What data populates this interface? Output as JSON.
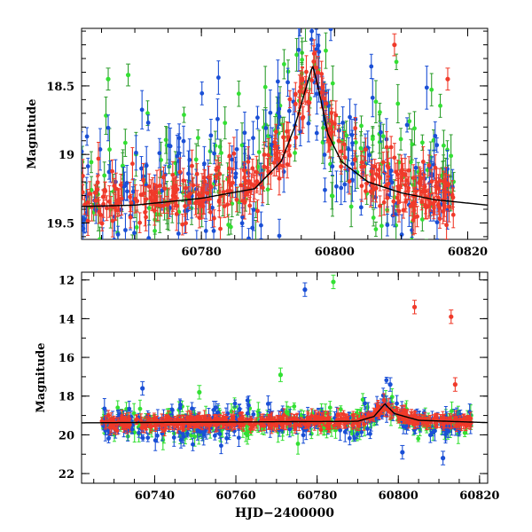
{
  "chart_data": [
    {
      "type": "scatter",
      "panel": "top",
      "title": "",
      "xlabel": "",
      "ylabel": "Magnitude",
      "xlim": [
        60762,
        60823
      ],
      "ylim": [
        19.62,
        18.08
      ],
      "y_inverted": true,
      "xticks": [
        60780,
        60800,
        60820
      ],
      "xtick_labels": [
        "60780",
        "60800",
        "60820"
      ],
      "yticks": [
        18.5,
        19,
        19.5
      ],
      "ytick_labels": [
        "18.5",
        "19",
        "19.5"
      ],
      "grid": false,
      "legend": "none",
      "series": [
        {
          "color": "#2e9e2e",
          "marker_color": "#33e033",
          "x_range": [
            60762,
            60818
          ],
          "base_mag": 19.25,
          "scatter": 0.35
        },
        {
          "color": "#1a4fd6",
          "x_range": [
            60762,
            60818
          ],
          "base_mag": 19.25,
          "scatter": 0.3
        },
        {
          "color": "#f03a2a",
          "x_range": [
            60762,
            60818
          ],
          "base_mag": 19.3,
          "scatter": 0.12
        }
      ],
      "model_curve": {
        "color": "#000000",
        "baseline": 19.38,
        "peak_x": 60796.7,
        "peak_mag": 18.35,
        "points": [
          [
            60762,
            19.38
          ],
          [
            60770,
            19.37
          ],
          [
            60780,
            19.32
          ],
          [
            60788,
            19.25
          ],
          [
            60792,
            19.05
          ],
          [
            60794,
            18.8
          ],
          [
            60795.5,
            18.55
          ],
          [
            60796.7,
            18.35
          ],
          [
            60797.5,
            18.5
          ],
          [
            60799,
            18.85
          ],
          [
            60801,
            19.05
          ],
          [
            60805,
            19.2
          ],
          [
            60810,
            19.28
          ],
          [
            60815,
            19.33
          ],
          [
            60823,
            19.37
          ]
        ]
      },
      "annotations": {
        "outliers": [
          {
            "series": 0,
            "x": 60766,
            "y": 18.45
          },
          {
            "series": 0,
            "x": 60769,
            "y": 18.42
          },
          {
            "series": 2,
            "x": 60817,
            "y": 18.45
          },
          {
            "series": 2,
            "x": 60809,
            "y": 18.2
          }
        ]
      }
    },
    {
      "type": "scatter",
      "panel": "bottom",
      "title": "",
      "xlabel": "HJD−2400000",
      "ylabel": "Magnitude",
      "xlim": [
        60722,
        60822
      ],
      "ylim": [
        22.5,
        11.6
      ],
      "y_inverted": true,
      "xticks": [
        60740,
        60760,
        60780,
        60800,
        60820
      ],
      "xtick_labels": [
        "60740",
        "60760",
        "60780",
        "60800",
        "60820"
      ],
      "yticks": [
        12,
        14,
        16,
        18,
        20,
        22
      ],
      "ytick_labels": [
        "12",
        "14",
        "16",
        "18",
        "20",
        "22"
      ],
      "grid": false,
      "legend": "none",
      "series": [
        {
          "color": "#33e033",
          "x_range": [
            60727,
            60818
          ],
          "base_mag": 19.4,
          "scatter": 0.45
        },
        {
          "color": "#1a4fd6",
          "x_range": [
            60727,
            60818
          ],
          "base_mag": 19.4,
          "scatter": 0.45
        },
        {
          "color": "#f03a2a",
          "x_range": [
            60727,
            60818
          ],
          "base_mag": 19.35,
          "scatter": 0.15
        }
      ],
      "model_curve": {
        "color": "#000000",
        "points": [
          [
            60722,
            19.38
          ],
          [
            60790,
            19.3
          ],
          [
            60794,
            19.05
          ],
          [
            60796.7,
            18.4
          ],
          [
            60799,
            18.9
          ],
          [
            60805,
            19.25
          ],
          [
            60822,
            19.37
          ]
        ]
      },
      "annotations": {
        "outliers": [
          {
            "series": 1,
            "x": 60777,
            "y": 12.5
          },
          {
            "series": 0,
            "x": 60784,
            "y": 12.1
          },
          {
            "series": 2,
            "x": 60804,
            "y": 13.4
          },
          {
            "series": 2,
            "x": 60813,
            "y": 13.9
          },
          {
            "series": 0,
            "x": 60771,
            "y": 16.9
          },
          {
            "series": 1,
            "x": 60798,
            "y": 17.4
          },
          {
            "series": 2,
            "x": 60814,
            "y": 17.4
          },
          {
            "series": 1,
            "x": 60737,
            "y": 17.6
          },
          {
            "series": 0,
            "x": 60751,
            "y": 17.8
          },
          {
            "series": 1,
            "x": 60801,
            "y": 20.9
          },
          {
            "series": 1,
            "x": 60811,
            "y": 21.2
          }
        ]
      }
    }
  ]
}
